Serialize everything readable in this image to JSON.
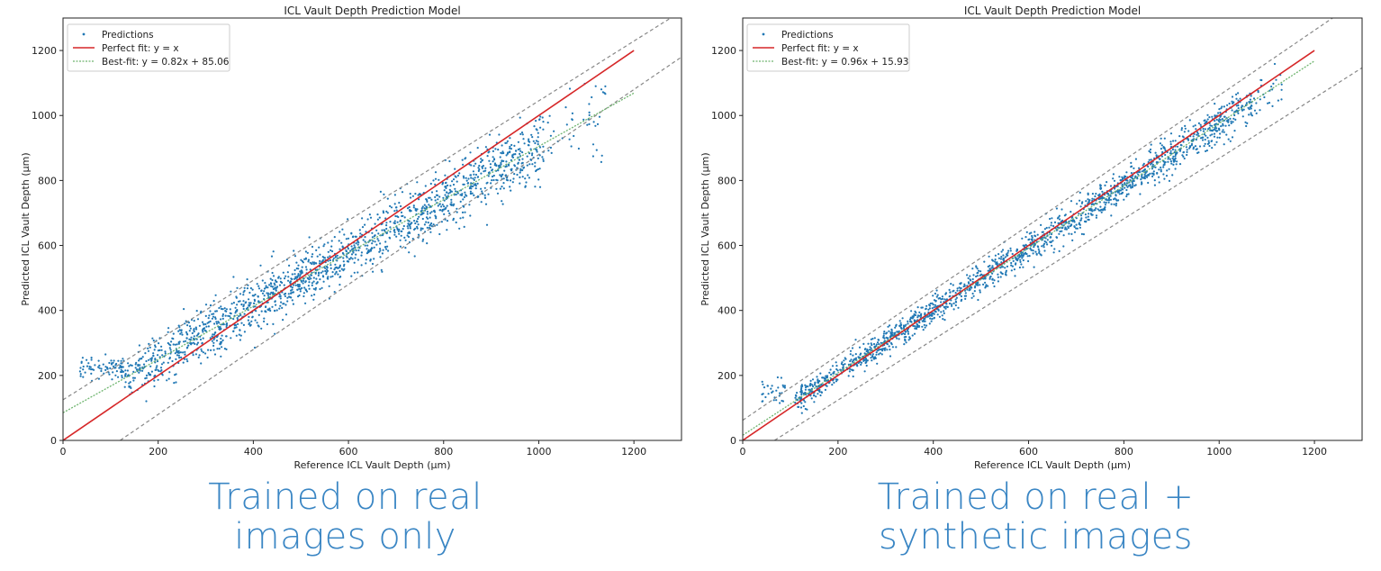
{
  "chart_data": [
    {
      "type": "scatter",
      "title": "ICL Vault Depth Prediction Model",
      "xlabel": "Reference ICL Vault Depth (µm)",
      "ylabel": "Predicted ICL Vault Depth (µm)",
      "xlim": [
        0,
        1300
      ],
      "ylim": [
        0,
        1300
      ],
      "xticks": [
        0,
        200,
        400,
        600,
        800,
        1000,
        1200
      ],
      "yticks": [
        0,
        200,
        400,
        600,
        800,
        1000,
        1200
      ],
      "grid": false,
      "legend_position": "top-left",
      "series": [
        {
          "name": "Predictions",
          "kind": "scatter",
          "color": "#1f77b4",
          "x_range": [
            30,
            1140
          ],
          "fit_slope": 0.82,
          "fit_intercept": 85.06,
          "spread": 40
        },
        {
          "name": "Perfect fit: y = x",
          "kind": "line",
          "color": "#d62728",
          "slope": 1,
          "intercept": 0
        },
        {
          "name": "Best-fit: y = 0.82x + 85.06",
          "kind": "line",
          "color": "#6fb56f",
          "slope": 0.82,
          "intercept": 85.06,
          "style": "dotted"
        }
      ],
      "bounds": {
        "color": "#888888",
        "lines": [
          {
            "slope": 0.92,
            "intercept": 125
          },
          {
            "slope": 1.0,
            "intercept": -120
          }
        ]
      },
      "caption": [
        "Trained on real",
        "images only"
      ]
    },
    {
      "type": "scatter",
      "title": "ICL Vault Depth Prediction Model",
      "xlabel": "Reference ICL Vault Depth (µm)",
      "ylabel": "Predicted ICL Vault Depth (µm)",
      "xlim": [
        0,
        1300
      ],
      "ylim": [
        0,
        1300
      ],
      "xticks": [
        0,
        200,
        400,
        600,
        800,
        1000,
        1200
      ],
      "yticks": [
        0,
        200,
        400,
        600,
        800,
        1000,
        1200
      ],
      "grid": false,
      "legend_position": "top-left",
      "series": [
        {
          "name": "Predictions",
          "kind": "scatter",
          "color": "#1f77b4",
          "x_range": [
            40,
            1140
          ],
          "fit_slope": 0.96,
          "fit_intercept": 15.93,
          "spread": 22
        },
        {
          "name": "Perfect fit: y = x",
          "kind": "line",
          "color": "#d62728",
          "slope": 1,
          "intercept": 0
        },
        {
          "name": "Best-fit: y = 0.96x + 15.93",
          "kind": "line",
          "color": "#6fb56f",
          "slope": 0.96,
          "intercept": 15.93,
          "style": "dotted"
        }
      ],
      "bounds": {
        "color": "#888888",
        "lines": [
          {
            "slope": 1.0,
            "intercept": 62
          },
          {
            "slope": 0.93,
            "intercept": -62
          }
        ]
      },
      "caption": [
        "Trained on real +",
        "synthetic images"
      ]
    }
  ]
}
